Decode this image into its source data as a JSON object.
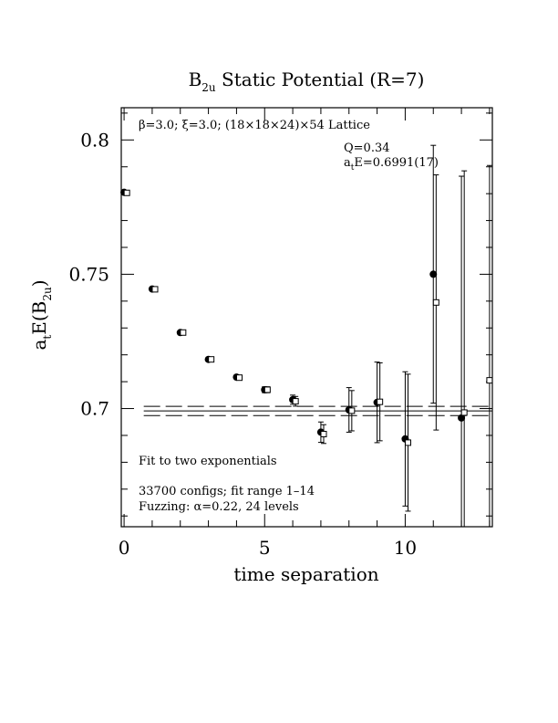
{
  "chart_data": {
    "type": "scatter",
    "title": "B",
    "title_sub": "2u",
    "title_rest": " Static Potential (R=7)",
    "xlabel": "time separation",
    "ylabel_main": "a",
    "ylabel_sub1": "t",
    "ylabel_mid": "E(B",
    "ylabel_sub2": "2u",
    "ylabel_end": ")",
    "xlim": [
      -0.1,
      13.1
    ],
    "ylim": [
      0.656,
      0.812
    ],
    "x_ticks": [
      0,
      5,
      10
    ],
    "x_tick_labels": [
      "0",
      "5",
      "10"
    ],
    "y_ticks": [
      0.7,
      0.75,
      0.8
    ],
    "y_tick_labels": [
      "0.7",
      "0.75",
      "0.8"
    ],
    "grid": false,
    "annotations": {
      "lattice": "β=3.0; ξ=3.0; (18×18×24)×54 Lattice",
      "q_value": "Q=0.34",
      "energy_pre": "a",
      "energy_sub": "t",
      "energy_rest": "E=0.6991(17)",
      "fit_type": "Fit to two exponentials",
      "configs": "33700 configs; fit range 1–14",
      "fuzzing": "Fuzzing: α=0.22, 24 levels"
    },
    "fit": {
      "value": 0.6991,
      "upper": 0.7008,
      "lower": 0.6974
    },
    "series": [
      {
        "marker": "filled-circle",
        "x": [
          0,
          1,
          2,
          3,
          4,
          5,
          6,
          7,
          8,
          9,
          10,
          11,
          12
        ],
        "y": [
          0.7805,
          0.7445,
          0.7283,
          0.7183,
          0.7117,
          0.707,
          0.7033,
          0.6912,
          0.6995,
          0.7023,
          0.6887,
          0.75,
          0.6965
        ],
        "err": [
          0.0005,
          0.0006,
          0.0007,
          0.0008,
          0.0009,
          0.0011,
          0.0017,
          0.0038,
          0.0083,
          0.015,
          0.025,
          0.048,
          0.09
        ]
      },
      {
        "marker": "open-square",
        "x": [
          0.1,
          1.1,
          2.1,
          3.1,
          4.1,
          5.1,
          6.1,
          7.1,
          8.1,
          9.1,
          10.1,
          11.1,
          12.1,
          13.0
        ],
        "y": [
          0.7803,
          0.7444,
          0.7283,
          0.7183,
          0.7115,
          0.707,
          0.7027,
          0.6905,
          0.6992,
          0.7025,
          0.6873,
          0.7395,
          0.6985,
          0.7105
        ],
        "err": [
          0.0005,
          0.0006,
          0.0007,
          0.0008,
          0.0009,
          0.0011,
          0.0018,
          0.0035,
          0.0075,
          0.0145,
          0.0255,
          0.0475,
          0.09,
          0.08
        ]
      }
    ]
  }
}
